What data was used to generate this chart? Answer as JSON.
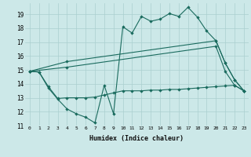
{
  "xlabel": "Humidex (Indice chaleur)",
  "bg_color": "#cce8e8",
  "line_color": "#1a6b5e",
  "grid_color": "#aacfcf",
  "x_ticks": [
    0,
    1,
    2,
    3,
    4,
    5,
    6,
    7,
    8,
    9,
    10,
    11,
    12,
    13,
    14,
    15,
    16,
    17,
    18,
    19,
    20,
    21,
    22,
    23
  ],
  "y_ticks": [
    11,
    12,
    13,
    14,
    15,
    16,
    17,
    18,
    19
  ],
  "xlim": [
    -0.5,
    23.5
  ],
  "ylim": [
    11,
    19.8
  ],
  "series1_x": [
    0,
    1,
    2,
    3,
    4,
    5,
    6,
    7,
    8,
    9,
    10,
    11,
    12,
    13,
    14,
    15,
    16,
    17,
    18,
    19,
    20,
    21,
    22,
    23
  ],
  "series1_y": [
    14.9,
    14.85,
    13.7,
    12.9,
    12.2,
    11.85,
    11.6,
    11.2,
    13.9,
    11.85,
    18.1,
    17.65,
    18.85,
    18.5,
    18.65,
    19.05,
    18.85,
    19.5,
    18.8,
    17.8,
    17.1,
    15.5,
    14.3,
    13.5
  ],
  "series2_x": [
    0,
    4,
    20,
    21,
    22,
    23
  ],
  "series2_y": [
    14.9,
    15.6,
    17.1,
    15.5,
    14.3,
    13.5
  ],
  "series3_x": [
    0,
    4,
    20,
    21,
    22,
    23
  ],
  "series3_y": [
    14.9,
    15.2,
    16.7,
    14.9,
    13.9,
    13.5
  ],
  "series4_x": [
    0,
    1,
    2,
    3,
    4,
    5,
    6,
    7,
    8,
    9,
    10,
    11,
    12,
    13,
    14,
    15,
    16,
    17,
    18,
    19,
    20,
    21,
    22,
    23
  ],
  "series4_y": [
    14.9,
    14.85,
    13.8,
    12.95,
    13.0,
    13.0,
    13.0,
    13.05,
    13.2,
    13.35,
    13.5,
    13.5,
    13.5,
    13.55,
    13.55,
    13.6,
    13.6,
    13.65,
    13.7,
    13.75,
    13.8,
    13.85,
    13.9,
    13.5
  ]
}
